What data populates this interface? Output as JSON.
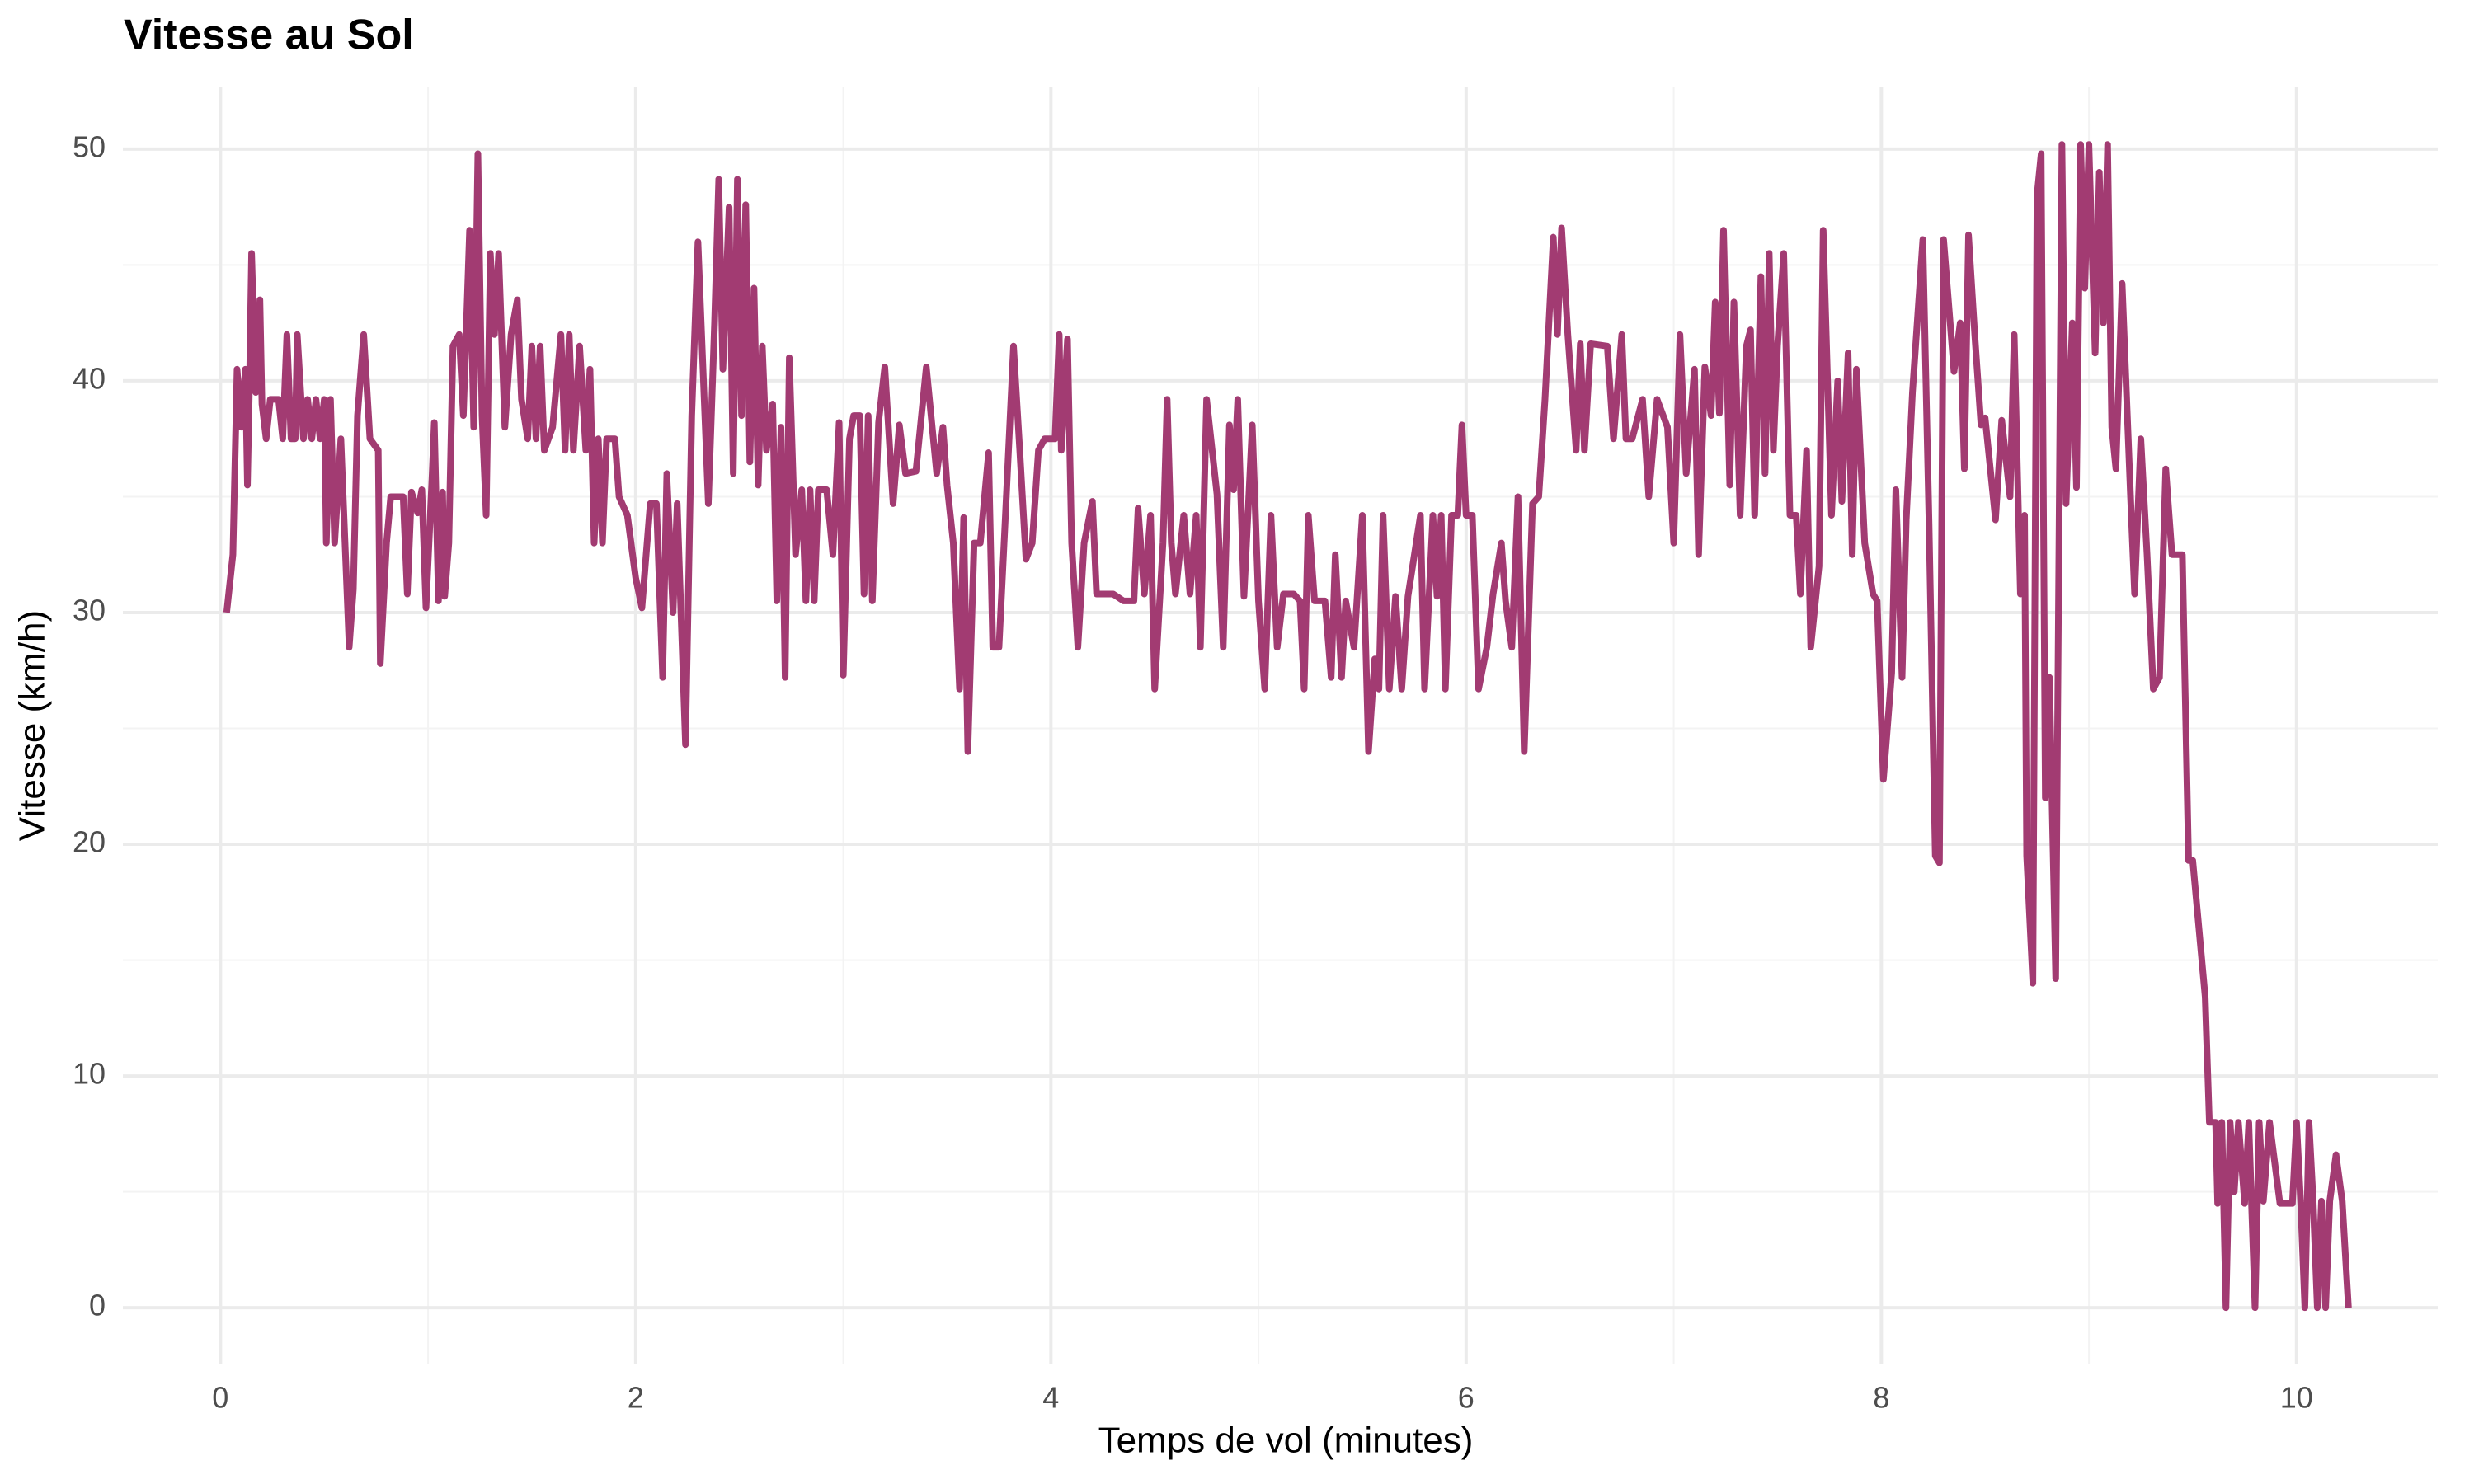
{
  "chart_data": {
    "type": "line",
    "title": "Vitesse au Sol",
    "x_label": "Temps de vol (minutes)",
    "y_label": "Vitesse (km/h)",
    "color": "#a23b72",
    "grid": true,
    "xlim": [
      -0.47,
      10.68
    ],
    "ylim": [
      -2.45,
      52.7
    ],
    "xticks": [
      0,
      2,
      4,
      6,
      8,
      10
    ],
    "yticks": [
      0,
      10,
      20,
      30,
      40,
      50
    ],
    "x_minor_ticks": [
      1,
      3,
      5,
      7,
      9
    ],
    "y_minor_ticks": [
      5,
      15,
      25,
      35,
      45
    ],
    "x": [
      0.03,
      0.06,
      0.08,
      0.1,
      0.12,
      0.13,
      0.14,
      0.15,
      0.17,
      0.19,
      0.2,
      0.22,
      0.24,
      0.28,
      0.3,
      0.32,
      0.34,
      0.36,
      0.37,
      0.4,
      0.42,
      0.44,
      0.46,
      0.48,
      0.5,
      0.51,
      0.53,
      0.55,
      0.58,
      0.62,
      0.64,
      0.66,
      0.69,
      0.72,
      0.76,
      0.77,
      0.8,
      0.82,
      0.88,
      0.9,
      0.92,
      0.95,
      0.97,
      0.99,
      1.02,
      1.03,
      1.05,
      1.07,
      1.08,
      1.1,
      1.12,
      1.15,
      1.17,
      1.2,
      1.22,
      1.24,
      1.26,
      1.28,
      1.3,
      1.32,
      1.34,
      1.37,
      1.4,
      1.43,
      1.45,
      1.48,
      1.5,
      1.52,
      1.54,
      1.56,
      1.6,
      1.64,
      1.66,
      1.68,
      1.7,
      1.73,
      1.76,
      1.78,
      1.8,
      1.82,
      1.84,
      1.86,
      1.9,
      1.92,
      1.96,
      2.0,
      2.03,
      2.07,
      2.1,
      2.13,
      2.15,
      2.18,
      2.2,
      2.24,
      2.27,
      2.3,
      2.35,
      2.38,
      2.4,
      2.42,
      2.45,
      2.47,
      2.49,
      2.51,
      2.53,
      2.55,
      2.57,
      2.59,
      2.61,
      2.63,
      2.66,
      2.68,
      2.7,
      2.72,
      2.74,
      2.77,
      2.8,
      2.82,
      2.84,
      2.86,
      2.88,
      2.92,
      2.95,
      2.98,
      3.0,
      3.03,
      3.05,
      3.08,
      3.1,
      3.12,
      3.14,
      3.17,
      3.2,
      3.24,
      3.27,
      3.3,
      3.35,
      3.4,
      3.45,
      3.48,
      3.5,
      3.53,
      3.56,
      3.58,
      3.6,
      3.63,
      3.66,
      3.7,
      3.72,
      3.75,
      3.78,
      3.82,
      3.85,
      3.88,
      3.91,
      3.94,
      3.97,
      4.02,
      4.04,
      4.05,
      4.08,
      4.1,
      4.13,
      4.16,
      4.2,
      4.22,
      4.3,
      4.35,
      4.4,
      4.42,
      4.45,
      4.48,
      4.5,
      4.54,
      4.56,
      4.58,
      4.6,
      4.64,
      4.67,
      4.7,
      4.72,
      4.75,
      4.8,
      4.83,
      4.86,
      4.88,
      4.9,
      4.93,
      4.97,
      5.0,
      5.03,
      5.06,
      5.09,
      5.12,
      5.17,
      5.2,
      5.22,
      5.24,
      5.27,
      5.32,
      5.35,
      5.37,
      5.4,
      5.42,
      5.46,
      5.5,
      5.53,
      5.56,
      5.58,
      5.6,
      5.63,
      5.66,
      5.69,
      5.72,
      5.78,
      5.8,
      5.84,
      5.86,
      5.88,
      5.9,
      5.93,
      5.96,
      5.98,
      6.0,
      6.03,
      6.06,
      6.1,
      6.13,
      6.17,
      6.19,
      6.22,
      6.25,
      6.28,
      6.32,
      6.35,
      6.38,
      6.42,
      6.44,
      6.46,
      6.49,
      6.53,
      6.55,
      6.57,
      6.6,
      6.68,
      6.71,
      6.75,
      6.77,
      6.8,
      6.85,
      6.88,
      6.92,
      6.97,
      7.0,
      7.03,
      7.06,
      7.1,
      7.12,
      7.15,
      7.18,
      7.2,
      7.22,
      7.24,
      7.27,
      7.29,
      7.32,
      7.35,
      7.37,
      7.39,
      7.42,
      7.44,
      7.46,
      7.48,
      7.5,
      7.53,
      7.56,
      7.59,
      7.61,
      7.64,
      7.66,
      7.7,
      7.72,
      7.76,
      7.79,
      7.81,
      7.84,
      7.86,
      7.88,
      7.92,
      7.96,
      7.98,
      8.01,
      8.05,
      8.07,
      8.1,
      8.12,
      8.15,
      8.2,
      8.23,
      8.26,
      8.28,
      8.3,
      8.35,
      8.38,
      8.4,
      8.42,
      8.45,
      8.48,
      8.5,
      8.55,
      8.58,
      8.62,
      8.64,
      8.67,
      8.69,
      8.7,
      8.73,
      8.75,
      8.77,
      8.79,
      8.81,
      8.84,
      8.87,
      8.89,
      8.92,
      8.94,
      8.96,
      8.98,
      9.0,
      9.03,
      9.05,
      9.07,
      9.09,
      9.11,
      9.13,
      9.16,
      9.2,
      9.22,
      9.25,
      9.28,
      9.31,
      9.34,
      9.37,
      9.4,
      9.45,
      9.48,
      9.5,
      9.56,
      9.58,
      9.61,
      9.62,
      9.64,
      9.66,
      9.68,
      9.7,
      9.72,
      9.75,
      9.77,
      9.8,
      9.82,
      9.84,
      9.87,
      9.92,
      9.98,
      10.0,
      10.02,
      10.04,
      10.06,
      10.08,
      10.1,
      10.12,
      10.14,
      10.16,
      10.19,
      10.22,
      10.25
    ],
    "values": [
      30,
      32.5,
      40.5,
      38,
      40.5,
      35.5,
      40,
      45.5,
      39.5,
      43.5,
      39,
      37.5,
      39.2,
      39.2,
      37.5,
      42,
      37.5,
      37.5,
      42,
      37.5,
      39.2,
      37.5,
      39.2,
      37.5,
      39.2,
      33,
      39.2,
      33,
      37.5,
      28.5,
      31,
      38.5,
      42,
      37.5,
      37,
      27.8,
      33,
      35,
      35,
      30.8,
      35.2,
      34.3,
      35.3,
      30.2,
      36,
      38.2,
      30.5,
      35.2,
      30.7,
      33,
      41.5,
      42,
      38.5,
      46.5,
      38,
      49.8,
      38.5,
      34.2,
      45.5,
      42,
      45.5,
      38,
      42,
      43.5,
      39.2,
      37.5,
      41.5,
      37.5,
      41.5,
      37,
      38,
      42,
      37,
      42,
      37,
      41.5,
      37,
      40.5,
      33,
      37.5,
      33,
      37.5,
      37.5,
      35,
      34.2,
      31.5,
      30.2,
      34.7,
      34.7,
      27.2,
      36,
      30,
      34.7,
      24.3,
      38.5,
      46,
      34.7,
      42.5,
      48.7,
      40.5,
      47.5,
      36,
      48.7,
      38.5,
      47.6,
      36.5,
      44,
      35.5,
      41.5,
      37,
      39,
      30.5,
      38,
      27.2,
      41,
      32.5,
      35.3,
      30.5,
      35.3,
      30.5,
      35.3,
      35.3,
      32.5,
      38.2,
      27.3,
      37.5,
      38.5,
      38.5,
      30.8,
      38.5,
      30.5,
      38.2,
      40.6,
      34.7,
      38.1,
      36,
      36.1,
      40.6,
      36,
      38,
      35.5,
      33,
      26.7,
      34.1,
      24,
      33,
      33,
      36.9,
      28.5,
      28.5,
      34,
      41.5,
      37,
      32.3,
      33,
      37,
      37.5,
      37.5,
      42,
      37,
      41.8,
      33,
      28.5,
      33,
      34.8,
      30.8,
      30.8,
      30.5,
      30.5,
      34.5,
      30.8,
      34.2,
      26.7,
      33,
      39.2,
      33,
      30.8,
      34.2,
      30.8,
      34.2,
      28.5,
      39.2,
      35.1,
      28.5,
      38.1,
      35.3,
      39.2,
      30.7,
      38.1,
      30.5,
      26.7,
      34.2,
      28.5,
      30.8,
      30.8,
      30.5,
      26.7,
      34.2,
      30.5,
      30.5,
      27.2,
      32.5,
      27.2,
      30.5,
      28.5,
      34.2,
      24,
      28,
      26.7,
      34.2,
      26.7,
      30.7,
      26.7,
      30.7,
      34.2,
      26.7,
      34.2,
      30.7,
      34.2,
      26.7,
      34.2,
      34.2,
      38.1,
      34.2,
      34.2,
      26.7,
      28.5,
      30.8,
      33,
      30.5,
      28.5,
      35,
      24,
      34.7,
      35,
      39.2,
      46.2,
      42,
      46.6,
      42,
      37,
      41.6,
      37,
      41.6,
      41.5,
      37.5,
      42,
      37.5,
      37.5,
      39.2,
      35,
      39.2,
      38,
      33,
      42,
      36,
      40.5,
      32.5,
      40.6,
      38.5,
      43.4,
      38.6,
      46.5,
      35.5,
      43.4,
      34.2,
      41.5,
      42.2,
      34.2,
      44.5,
      36,
      45.5,
      37,
      41.5,
      45.5,
      34.2,
      34.2,
      30.8,
      37,
      28.5,
      32,
      46.5,
      34.2,
      40,
      34.8,
      41.2,
      32.5,
      40.5,
      33,
      30.8,
      30.5,
      22.8,
      27.4,
      35.3,
      27.2,
      34,
      39.5,
      46.1,
      33.8,
      19.5,
      19.2,
      46.1,
      40.4,
      42.5,
      36.2,
      46.3,
      42,
      38.1,
      38.4,
      34,
      38.3,
      35,
      42,
      30.8,
      34.2,
      19.5,
      14,
      48,
      49.8,
      22,
      27.2,
      14.2,
      50.2,
      34.7,
      42.5,
      35.4,
      50.2,
      44,
      50.2,
      41.2,
      49,
      42.5,
      50.2,
      38,
      36.2,
      44.2,
      35.1,
      30.8,
      37.5,
      32.5,
      26.7,
      27.2,
      36.2,
      32.5,
      32.5,
      19.3,
      19.3,
      13.4,
      8,
      8,
      4.5,
      8,
      0,
      8,
      5,
      8,
      4.5,
      8,
      0,
      8,
      4.6,
      8,
      4.5,
      4.5,
      8,
      4.5,
      0,
      8,
      4.6,
      0,
      4.6,
      0,
      4.6,
      6.6,
      4.6,
      0
    ]
  }
}
